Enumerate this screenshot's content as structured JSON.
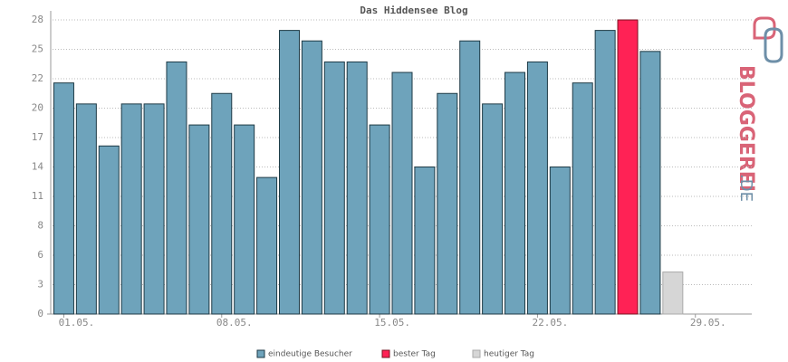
{
  "chart_data": {
    "type": "bar",
    "title": "Das Hiddensee Blog",
    "categories": [
      "01.05.",
      null,
      null,
      null,
      null,
      null,
      null,
      "08.05.",
      null,
      null,
      null,
      null,
      null,
      null,
      "15.05.",
      null,
      null,
      null,
      null,
      null,
      null,
      "22.05.",
      null,
      null,
      null,
      null,
      null,
      null,
      "29.05.",
      null,
      null
    ],
    "series": [
      {
        "name": "eindeutige Besucher",
        "color": "#6ea3bb",
        "values": [
          22,
          20,
          16,
          20,
          20,
          24,
          18,
          21,
          18,
          13,
          27,
          26,
          24,
          24,
          18,
          23,
          14,
          21,
          26,
          20,
          23,
          24,
          14,
          22,
          27,
          null,
          25,
          null,
          null,
          null,
          null
        ]
      },
      {
        "name": "bester Tag",
        "color": "#ff2255",
        "values": [
          null,
          null,
          null,
          null,
          null,
          null,
          null,
          null,
          null,
          null,
          null,
          null,
          null,
          null,
          null,
          null,
          null,
          null,
          null,
          null,
          null,
          null,
          null,
          null,
          null,
          28,
          null,
          null,
          null,
          null,
          null
        ]
      },
      {
        "name": "heutiger Tag",
        "color": "#d6d6d6",
        "values": [
          null,
          null,
          null,
          null,
          null,
          null,
          null,
          null,
          null,
          null,
          null,
          null,
          null,
          null,
          null,
          null,
          null,
          null,
          null,
          null,
          null,
          null,
          null,
          null,
          null,
          null,
          null,
          4,
          null,
          null,
          null
        ]
      }
    ],
    "ylim": [
      0,
      28
    ],
    "yticks": [
      0,
      {
        "value": 2.8,
        "label": "3"
      },
      {
        "value": 5.6,
        "label": "6"
      },
      {
        "value": 8.4,
        "label": "8"
      },
      {
        "value": 11.2,
        "label": "11"
      },
      14,
      {
        "value": 16.8,
        "label": "17"
      },
      {
        "value": 19.6,
        "label": "20"
      },
      {
        "value": 22.4,
        "label": "22"
      },
      {
        "value": 25.2,
        "label": "25"
      },
      28
    ],
    "grid": true,
    "watermark": [
      "BLOGGEREI",
      ".DE"
    ]
  }
}
